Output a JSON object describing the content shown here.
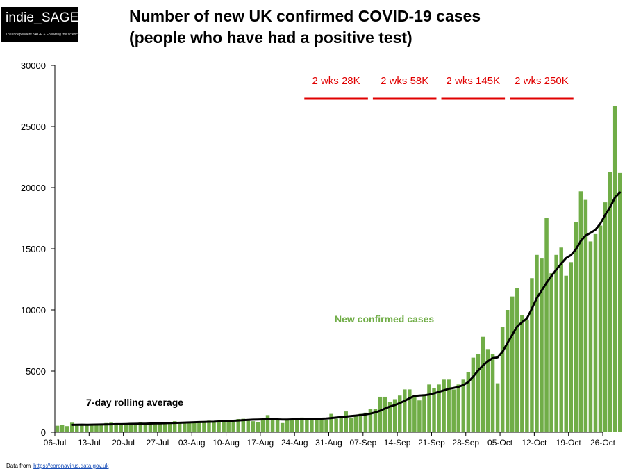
{
  "logo": {
    "name": "indie_SAGE",
    "tagline": "The Independent SAGE + Following the science"
  },
  "title_lines": [
    "Number of new UK confirmed COVID-19 cases",
    "(people who have had a positive test)"
  ],
  "footer": {
    "label": "Data from",
    "source": "https://coronavirus.data.gov.uk"
  },
  "colors": {
    "bar": "#70ad47",
    "line": "#000000",
    "annotation": "#e00000",
    "series_label": "#70ad47"
  },
  "chart_data": {
    "type": "bar",
    "title": "Number of new UK confirmed COVID-19 cases (people who have had a positive test)",
    "x_start": "06-Jul",
    "x_tick_labels": [
      "06-Jul",
      "13-Jul",
      "20-Jul",
      "27-Jul",
      "03-Aug",
      "10-Aug",
      "17-Aug",
      "24-Aug",
      "31-Aug",
      "07-Sep",
      "14-Sep",
      "21-Sep",
      "28-Sep",
      "05-Oct",
      "12-Oct",
      "19-Oct",
      "26-Oct"
    ],
    "y_tick_labels": [
      "0",
      "5000",
      "10000",
      "15000",
      "20000",
      "25000",
      "30000"
    ],
    "ylim": [
      0,
      30000
    ],
    "grid": false,
    "series": [
      {
        "name": "New confirmed cases",
        "type": "bar",
        "values": [
          530,
          580,
          500,
          780,
          640,
          650,
          600,
          620,
          600,
          670,
          750,
          780,
          600,
          570,
          680,
          770,
          580,
          800,
          720,
          750,
          760,
          750,
          800,
          850,
          900,
          800,
          750,
          740,
          800,
          850,
          880,
          950,
          800,
          900,
          800,
          1000,
          850,
          1080,
          1100,
          1050,
          900,
          850,
          1100,
          1400,
          1050,
          1000,
          750,
          1000,
          1100,
          1000,
          1200,
          1050,
          1000,
          1100,
          1100,
          1000,
          1500,
          1100,
          1300,
          1700,
          1200,
          1300,
          1500,
          1600,
          1900,
          1900,
          2900,
          2900,
          2500,
          2700,
          3000,
          3500,
          3500,
          3000,
          2600,
          3100,
          3900,
          3600,
          3900,
          4300,
          4300,
          3500,
          3900,
          4300,
          4900,
          6100,
          6400,
          7800,
          6800,
          6400,
          4000,
          8600,
          10000,
          11100,
          11800,
          9600,
          9200,
          12600,
          14500,
          14200,
          17500,
          13000,
          14500,
          15100,
          12800,
          13900,
          17200,
          19700,
          19000,
          15600,
          16200,
          16900,
          18800,
          21300,
          26700,
          21200
        ]
      },
      {
        "name": "7-day rolling average",
        "type": "line",
        "values": [
          null,
          null,
          null,
          600,
          610,
          620,
          610,
          620,
          625,
          630,
          640,
          650,
          660,
          660,
          670,
          680,
          690,
          700,
          700,
          710,
          720,
          730,
          740,
          750,
          760,
          770,
          790,
          800,
          820,
          830,
          840,
          850,
          860,
          880,
          890,
          920,
          940,
          960,
          990,
          1010,
          1030,
          1040,
          1050,
          1060,
          1060,
          1050,
          1040,
          1040,
          1050,
          1070,
          1080,
          1070,
          1080,
          1100,
          1110,
          1120,
          1160,
          1200,
          1240,
          1280,
          1320,
          1360,
          1400,
          1450,
          1520,
          1620,
          1760,
          1940,
          2100,
          2220,
          2380,
          2560,
          2780,
          2960,
          3000,
          3020,
          3080,
          3180,
          3300,
          3420,
          3550,
          3620,
          3710,
          3860,
          4100,
          4540,
          5040,
          5460,
          5800,
          6060,
          6120,
          6580,
          7280,
          7960,
          8640,
          9000,
          9300,
          10100,
          10960,
          11580,
          12220,
          12760,
          13300,
          13780,
          14240,
          14480,
          14960,
          15640,
          16080,
          16300,
          16550,
          17060,
          17780,
          18400,
          19200,
          19600
        ]
      }
    ],
    "series_labels": [
      "New confirmed cases",
      "7-day rolling average"
    ],
    "annotations": [
      {
        "text": "2 wks 28K",
        "from_day": 51,
        "to_day": 64
      },
      {
        "text": "2 wks 58K",
        "from_day": 65,
        "to_day": 78
      },
      {
        "text": "2 wks 145K",
        "from_day": 79,
        "to_day": 92
      },
      {
        "text": "2 wks 250K",
        "from_day": 93,
        "to_day": 106
      }
    ]
  }
}
